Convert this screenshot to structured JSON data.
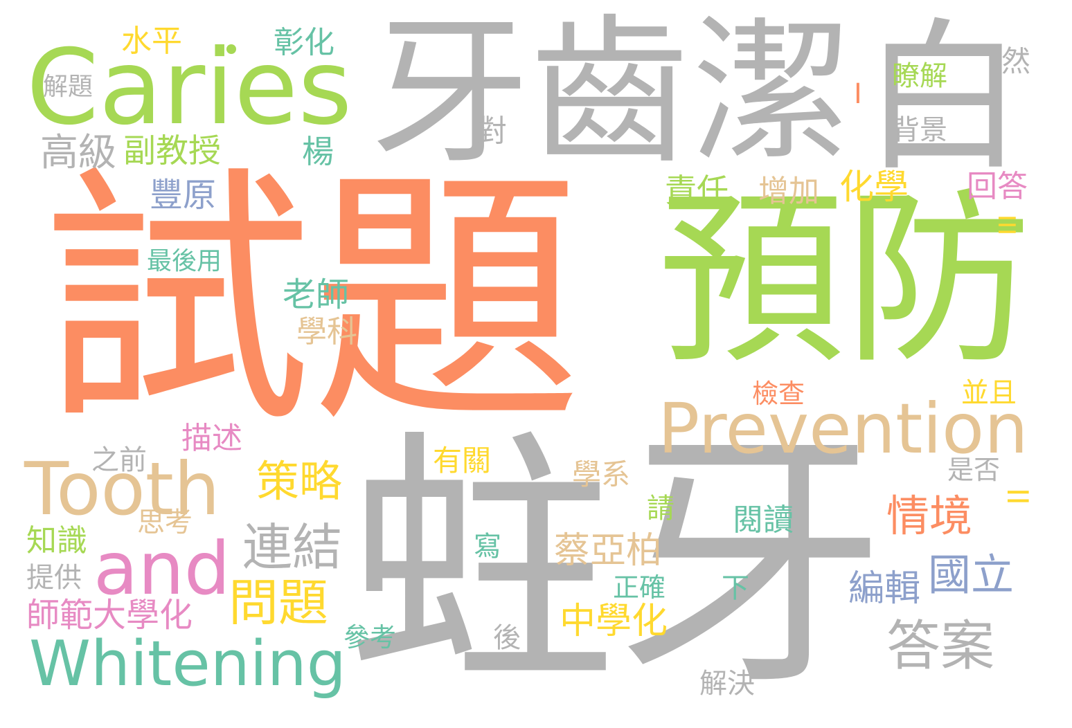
{
  "background": "#ffffff",
  "palette": {
    "orange": "#fc8d62",
    "gray": "#b3b3b3",
    "green": "#a6d854",
    "tan": "#e5c494",
    "teal": "#66c2a5",
    "pink": "#e78ac3",
    "blue": "#8da0cb",
    "yellow": "#ffd92f"
  },
  "words": {
    "shiti": "試題",
    "zhuya": "蛀牙",
    "yufang": "預防",
    "yachi": "牙齒",
    "jie": "潔",
    "bai": "白",
    "caries": "Caries",
    "prevention": "Prevention",
    "tooth": "Tooth",
    "whitening": "Whitening",
    "and": "and",
    "lianjie": "連結",
    "wenti": "問題",
    "celue": "策略",
    "daan": "答案",
    "guoli": "國立",
    "qingjing": "情境",
    "gaoji": "高級",
    "fujiaoshou": "副教授",
    "fengyuan": "豐原",
    "shuiping": "水平",
    "zhanghua": "彰化",
    "jieti": "解題",
    "yang": "楊",
    "dui": "對",
    "zuihouyong": "最後用",
    "laoshi": "老師",
    "xueke": "學科",
    "zeren": "責任",
    "zengjia": "增加",
    "huaxue": "化學",
    "huida": "回答",
    "liaojie": "瞭解",
    "beijing": "背景",
    "ran": "然",
    "jiancha": "檢查",
    "bingqie": "並且",
    "shifou": "是否",
    "miaoshu": "描述",
    "zhiqian": "之前",
    "youguan": "有關",
    "xuexi": "學系",
    "qing": "請",
    "yuedu": "閱讀",
    "sikao": "思考",
    "zhishi": "知識",
    "xie": "寫",
    "caiyabo": "蔡亞柏",
    "tigong": "提供",
    "zhengque": "正確",
    "xia": "下",
    "bianji": "編輯",
    "shifan": "師範大學化",
    "zhongxue": "中學化",
    "cankao": "參考",
    "hou": "後",
    "jiejue": "解決",
    "bar1": "I",
    "bar3": "III",
    "bar2": "II"
  }
}
